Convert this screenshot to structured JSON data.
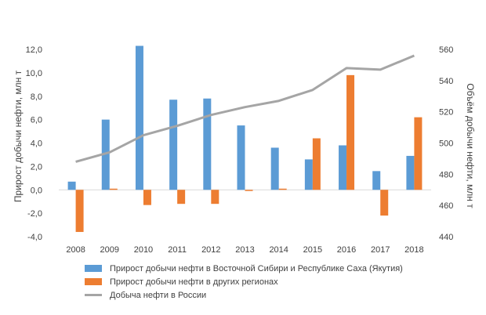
{
  "chart_data": {
    "type": "bar",
    "categories": [
      "2008",
      "2009",
      "2010",
      "2011",
      "2012",
      "2013",
      "2014",
      "2015",
      "2016",
      "2017",
      "2018"
    ],
    "series": [
      {
        "name": "Прирост добычи нефти в Восточной Сибири и Республике Саха (Якутия)",
        "type": "bar",
        "axis": "left",
        "color": "#5b9bd5",
        "values": [
          0.7,
          6.0,
          12.3,
          7.7,
          7.8,
          5.5,
          3.6,
          2.6,
          3.8,
          1.6,
          2.9
        ]
      },
      {
        "name": "Прирост добычи нефти в других регионах",
        "type": "bar",
        "axis": "left",
        "color": "#ed7d31",
        "values": [
          -3.6,
          0.1,
          -1.3,
          -1.2,
          -1.2,
          -0.1,
          0.1,
          4.4,
          9.8,
          -2.2,
          6.2
        ]
      },
      {
        "name": "Добыча нефти в России",
        "type": "line",
        "axis": "right",
        "color": "#a5a5a5",
        "values": [
          488,
          494,
          505,
          511,
          518,
          523,
          527,
          534,
          548,
          547,
          556
        ]
      }
    ],
    "y_left": {
      "label": "Прирост добычи нефти, млн т",
      "min": -4,
      "max": 12,
      "ticks": [
        "-4,0",
        "-2,0",
        "0,0",
        "2,0",
        "4,0",
        "6,0",
        "8,0",
        "10,0",
        "12,0"
      ]
    },
    "y_right": {
      "label": "Объём добычи нефти, млн т",
      "min": 440,
      "max": 560,
      "ticks": [
        "440",
        "460",
        "480",
        "500",
        "520",
        "540",
        "560"
      ]
    },
    "legend_position": "bottom",
    "grid": false
  }
}
